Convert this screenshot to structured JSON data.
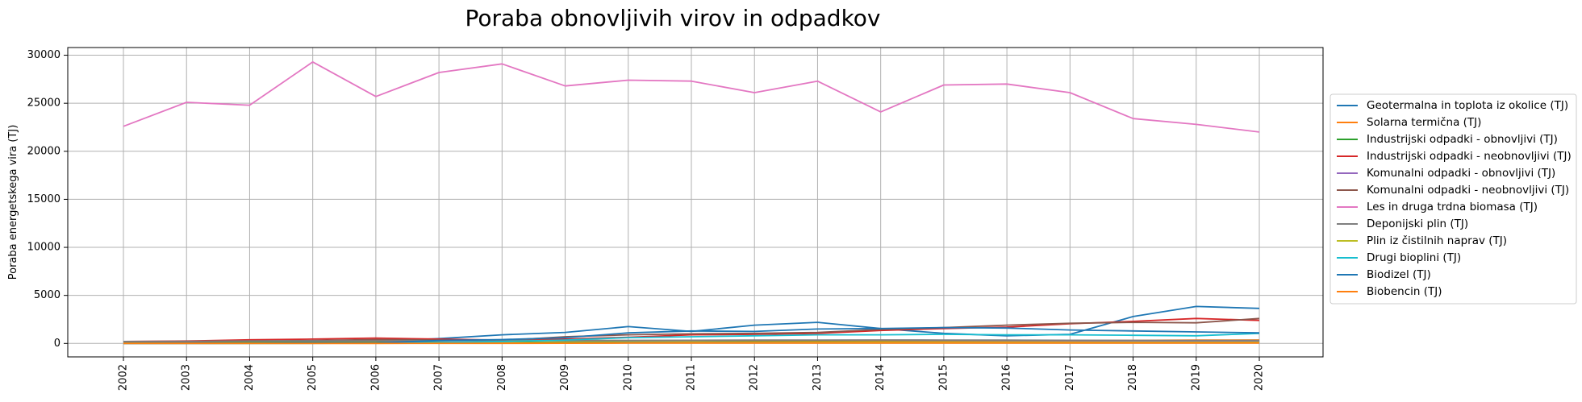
{
  "chart_data": {
    "type": "line",
    "title": "Poraba obnovljivih virov in odpadkov",
    "xlabel": "",
    "ylabel": "Poraba energetskega vira (TJ)",
    "x": [
      "2002",
      "2003",
      "2004",
      "2005",
      "2006",
      "2007",
      "2008",
      "2009",
      "2010",
      "2011",
      "2012",
      "2013",
      "2014",
      "2015",
      "2016",
      "2017",
      "2018",
      "2019",
      "2020"
    ],
    "ylim": [
      -1400,
      30800
    ],
    "yticks": [
      0,
      5000,
      10000,
      15000,
      20000,
      25000,
      30000
    ],
    "grid": true,
    "legend_position": "right",
    "series": [
      {
        "name": "Geotermalna in toplota iz okolice (TJ)",
        "color": "#1f77b4",
        "values": [
          100,
          120,
          150,
          180,
          200,
          500,
          900,
          1150,
          1750,
          1250,
          1900,
          2200,
          1550,
          1050,
          800,
          950,
          2800,
          3850,
          3650
        ]
      },
      {
        "name": "Solarna termična (TJ)",
        "color": "#ff7f0e",
        "values": [
          50,
          60,
          70,
          80,
          90,
          100,
          120,
          140,
          160,
          180,
          200,
          220,
          240,
          260,
          280,
          300,
          320,
          340,
          360
        ]
      },
      {
        "name": "Industrijski odpadki - obnovljivi (TJ)",
        "color": "#2ca02c",
        "values": [
          80,
          90,
          100,
          100,
          110,
          110,
          120,
          130,
          140,
          140,
          150,
          150,
          150,
          150,
          150,
          160,
          160,
          160,
          160
        ]
      },
      {
        "name": "Industrijski odpadki - neobnovljivi (TJ)",
        "color": "#d62728",
        "values": [
          200,
          250,
          380,
          450,
          550,
          450,
          350,
          450,
          650,
          900,
          950,
          1050,
          1350,
          1550,
          1700,
          2050,
          2300,
          2600,
          2400
        ]
      },
      {
        "name": "Komunalni odpadki - obnovljivi (TJ)",
        "color": "#9467bd",
        "values": [
          20,
          20,
          30,
          40,
          50,
          60,
          70,
          80,
          90,
          100,
          110,
          120,
          130,
          140,
          150,
          160,
          170,
          180,
          190
        ]
      },
      {
        "name": "Komunalni odpadki - neobnovljivi (TJ)",
        "color": "#8c564b",
        "values": [
          150,
          180,
          250,
          300,
          400,
          350,
          300,
          700,
          900,
          1000,
          1050,
          1150,
          1450,
          1650,
          1900,
          2100,
          2200,
          2150,
          2600
        ]
      },
      {
        "name": "Les in druga trdna biomasa (TJ)",
        "color": "#e377c2",
        "values": [
          22600,
          25100,
          24800,
          29300,
          25700,
          28200,
          29100,
          26800,
          27400,
          27300,
          26100,
          27300,
          24100,
          26900,
          27000,
          26100,
          23400,
          22800,
          22000
        ]
      },
      {
        "name": "Deponijski plin (TJ)",
        "color": "#7f7f7f",
        "values": [
          200,
          220,
          250,
          260,
          270,
          280,
          300,
          310,
          320,
          330,
          340,
          350,
          360,
          350,
          340,
          330,
          320,
          310,
          300
        ]
      },
      {
        "name": "Plin iz čistilnih naprav (TJ)",
        "color": "#bcbd22",
        "values": [
          30,
          35,
          40,
          45,
          50,
          55,
          60,
          70,
          80,
          90,
          100,
          110,
          120,
          120,
          120,
          120,
          120,
          120,
          120
        ]
      },
      {
        "name": "Drugi bioplini (TJ)",
        "color": "#17becf",
        "values": [
          0,
          0,
          0,
          10,
          30,
          100,
          200,
          350,
          600,
          700,
          800,
          900,
          900,
          950,
          900,
          900,
          850,
          800,
          1050
        ]
      },
      {
        "name": "Biodizel (TJ)",
        "color": "#1f77b4",
        "values": [
          0,
          10,
          20,
          40,
          60,
          300,
          400,
          600,
          1100,
          1300,
          1250,
          1500,
          1550,
          1650,
          1600,
          1400,
          1300,
          1200,
          1100
        ]
      },
      {
        "name": "Biobencin (TJ)",
        "color": "#ff7f0e",
        "values": [
          0,
          0,
          0,
          0,
          0,
          5,
          10,
          20,
          30,
          40,
          40,
          40,
          40,
          40,
          40,
          40,
          40,
          40,
          40
        ]
      }
    ]
  }
}
